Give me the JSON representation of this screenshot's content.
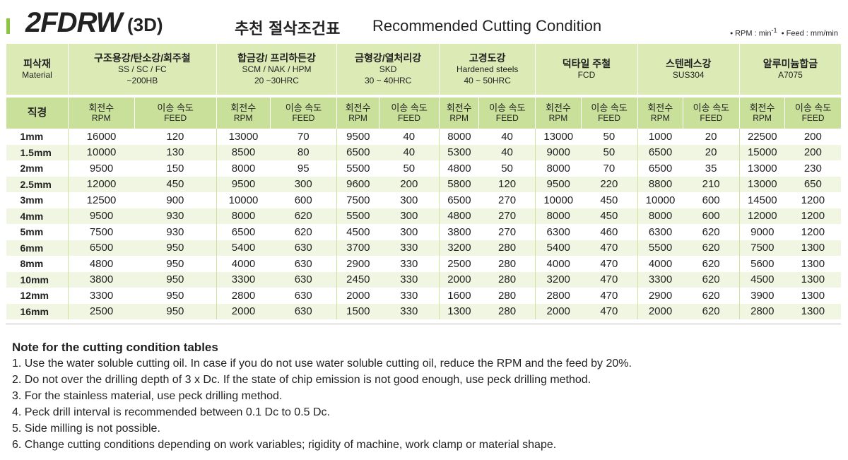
{
  "header": {
    "title": "2FDRW",
    "title_suffix": "(3D)",
    "title_korean": "추천 절삭조건표",
    "title_english": "Recommended Cutting Condition",
    "rpm_unit": "RPM : min",
    "rpm_unit_exponent": "-1",
    "feed_unit": "Feed : mm/min"
  },
  "table": {
    "material_header": {
      "korean": "피삭재",
      "english": "Material"
    },
    "materials": [
      {
        "name": "구조용강/탄소강/회주철",
        "lines": [
          "SS / SC / FC",
          "~200HB"
        ]
      },
      {
        "name": "합금강/ 프리하든강",
        "lines": [
          "SCM / NAK / HPM",
          "20 ~30HRC"
        ]
      },
      {
        "name": "금형강/열처리강",
        "lines": [
          "SKD",
          "30 ~ 40HRC"
        ]
      },
      {
        "name": "고경도강",
        "lines": [
          "Hardened steels",
          "40 ~ 50HRC"
        ]
      },
      {
        "name": "덕타일 주철",
        "lines": [
          "FCD"
        ]
      },
      {
        "name": "스텐레스강",
        "lines": [
          "SUS304"
        ]
      },
      {
        "name": "알루미늄합금",
        "lines": [
          "A7075"
        ]
      }
    ],
    "diameter_header": "직경",
    "rpm_header": {
      "korean": "회전수",
      "english": "RPM"
    },
    "feed_header": {
      "korean": "이송 속도",
      "english": "FEED"
    },
    "rows": [
      {
        "diameter": "1mm",
        "values": [
          16000,
          120,
          13000,
          70,
          9500,
          40,
          8000,
          40,
          13000,
          50,
          1000,
          20,
          22500,
          200
        ]
      },
      {
        "diameter": "1.5mm",
        "values": [
          10000,
          130,
          8500,
          80,
          6500,
          40,
          5300,
          40,
          9000,
          50,
          6500,
          20,
          15000,
          200
        ]
      },
      {
        "diameter": "2mm",
        "values": [
          9500,
          150,
          8000,
          95,
          5500,
          50,
          4800,
          50,
          8000,
          70,
          6500,
          35,
          13000,
          230
        ]
      },
      {
        "diameter": "2.5mm",
        "values": [
          12000,
          450,
          9500,
          300,
          9600,
          200,
          5800,
          120,
          9500,
          220,
          8800,
          210,
          13000,
          650
        ]
      },
      {
        "diameter": "3mm",
        "values": [
          12500,
          900,
          10000,
          600,
          7500,
          300,
          6500,
          270,
          10000,
          450,
          10000,
          600,
          14500,
          1200
        ]
      },
      {
        "diameter": "4mm",
        "values": [
          9500,
          930,
          8000,
          620,
          5500,
          300,
          4800,
          270,
          8000,
          450,
          8000,
          600,
          12000,
          1200
        ]
      },
      {
        "diameter": "5mm",
        "values": [
          7500,
          930,
          6500,
          620,
          4500,
          300,
          3800,
          270,
          6300,
          460,
          6300,
          620,
          9000,
          1200
        ]
      },
      {
        "diameter": "6mm",
        "values": [
          6500,
          950,
          5400,
          630,
          3700,
          330,
          3200,
          280,
          5400,
          470,
          5500,
          620,
          7500,
          1300
        ]
      },
      {
        "diameter": "8mm",
        "values": [
          4800,
          950,
          4000,
          630,
          2900,
          330,
          2500,
          280,
          4000,
          470,
          4000,
          620,
          5600,
          1300
        ]
      },
      {
        "diameter": "10mm",
        "values": [
          3800,
          950,
          3300,
          630,
          2450,
          330,
          2000,
          280,
          3200,
          470,
          3300,
          620,
          4500,
          1300
        ]
      },
      {
        "diameter": "12mm",
        "values": [
          3300,
          950,
          2800,
          630,
          2000,
          330,
          1600,
          280,
          2800,
          470,
          2900,
          620,
          3900,
          1300
        ]
      },
      {
        "diameter": "16mm",
        "values": [
          2500,
          950,
          2000,
          630,
          1500,
          330,
          1300,
          280,
          2000,
          470,
          2000,
          620,
          2800,
          1300
        ]
      }
    ]
  },
  "notes": {
    "title": "Note for the cutting condition tables",
    "items": [
      "1. Use the water soluble cutting oil. In case if you do not use water soluble cutting oil, reduce the RPM and the feed by 20%.",
      "2. Do not over the drilling depth of 3 x Dc. If the state of chip emission is not good enough, use peck drilling method.",
      "3. For the stainless material, use peck drilling method.",
      "4. Peck drill interval is recommended between 0.1 Dc to 0.5 Dc.",
      "5. Side milling is not possible.",
      "6. Change cutting conditions depending on work variables; rigidity of machine, work clamp or material shape."
    ]
  }
}
